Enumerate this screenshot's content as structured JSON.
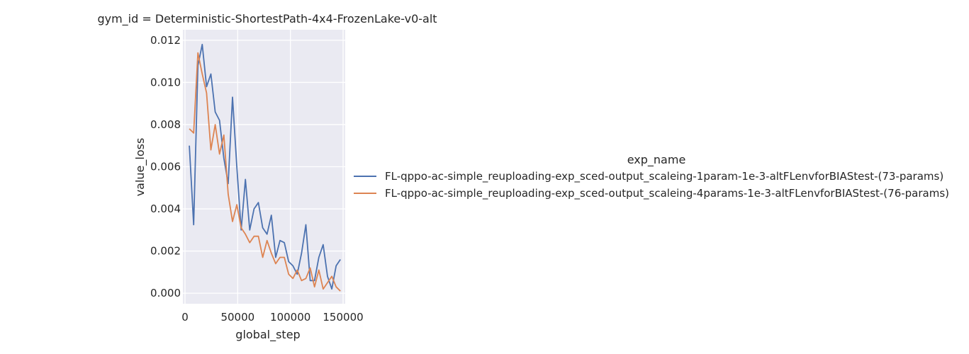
{
  "chart_data": {
    "type": "line",
    "title": "gym_id = Deterministic-ShortestPath-4x4-FrozenLake-v0-alt",
    "xlabel": "global_step",
    "ylabel": "value_loss",
    "xlim": [
      -2000,
      152000
    ],
    "ylim": [
      -0.0005,
      0.0125
    ],
    "xticks": [
      0,
      50000,
      100000,
      150000
    ],
    "xtick_labels": [
      "0",
      "50000",
      "100000",
      "150000"
    ],
    "yticks": [
      0.0,
      0.002,
      0.004,
      0.006,
      0.008,
      0.01,
      0.012
    ],
    "ytick_labels": [
      "0.000",
      "0.002",
      "0.004",
      "0.006",
      "0.008",
      "0.010",
      "0.012"
    ],
    "grid": true,
    "background": "#eaeaf2",
    "legend": {
      "title": "exp_name",
      "placement": "right"
    },
    "series": [
      {
        "name": "FL-qppo-ac-simple_reuploading-exp_sced-output_scaleing-1param-1e-3-altFLenvforBIAStest-(73-params)",
        "color": "#4c72b0",
        "x": [
          4096,
          8192,
          12288,
          16384,
          20480,
          24576,
          28672,
          32768,
          36864,
          40960,
          45056,
          49152,
          53248,
          57344,
          61440,
          65536,
          69632,
          73728,
          77824,
          81920,
          86016,
          90112,
          94208,
          98304,
          102400,
          106496,
          110592,
          114688,
          118784,
          122880,
          126976,
          131072,
          135168,
          139264,
          143360,
          147456
        ],
        "y": [
          0.007,
          0.00325,
          0.0108,
          0.0118,
          0.0098,
          0.0104,
          0.0086,
          0.0082,
          0.0064,
          0.0052,
          0.0093,
          0.006,
          0.003,
          0.0054,
          0.003,
          0.004,
          0.0043,
          0.0031,
          0.0028,
          0.0037,
          0.0017,
          0.0025,
          0.0024,
          0.0015,
          0.0013,
          0.0009,
          0.0019,
          0.00325,
          0.0006,
          0.0006,
          0.0017,
          0.0023,
          0.0008,
          0.0002,
          0.0013,
          0.0016
        ]
      },
      {
        "name": "FL-qppo-ac-simple_reuploading-exp_sced-output_scaleing-4params-1e-3-altFLenvforBIAStest-(76-params)",
        "color": "#dd8452",
        "x": [
          4096,
          8192,
          12288,
          16384,
          20480,
          24576,
          28672,
          32768,
          36864,
          40960,
          45056,
          49152,
          53248,
          57344,
          61440,
          65536,
          69632,
          73728,
          77824,
          81920,
          86016,
          90112,
          94208,
          98304,
          102400,
          106496,
          110592,
          114688,
          118784,
          122880,
          126976,
          131072,
          135168,
          139264,
          143360,
          147456
        ],
        "y": [
          0.0078,
          0.0076,
          0.0114,
          0.0104,
          0.0095,
          0.0068,
          0.008,
          0.0066,
          0.0075,
          0.0047,
          0.0034,
          0.0042,
          0.0031,
          0.0028,
          0.0024,
          0.0027,
          0.0027,
          0.0017,
          0.0025,
          0.0019,
          0.0014,
          0.0017,
          0.0017,
          0.0009,
          0.0007,
          0.0011,
          0.0006,
          0.0007,
          0.0012,
          0.0003,
          0.0011,
          0.0002,
          0.0005,
          0.0008,
          0.0003,
          0.0001
        ]
      }
    ]
  }
}
